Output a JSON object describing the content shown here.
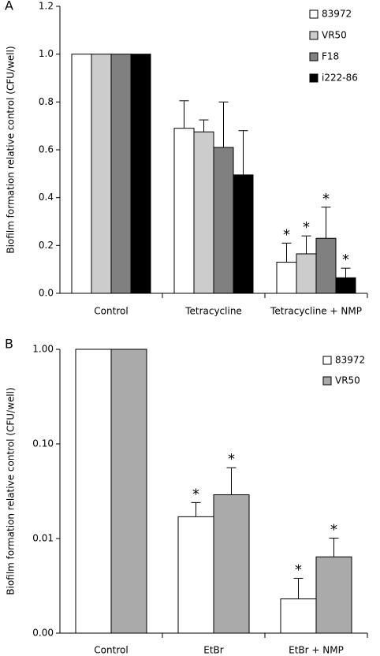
{
  "chart_data": [
    {
      "type": "bar",
      "panel_label": "A",
      "ylabel": "Biofilm formation relative control (CFU/well)",
      "categories": [
        "Control",
        "Tetracycline",
        "Tetracycline + NMP"
      ],
      "series": [
        {
          "name": "83972",
          "color": "#ffffff",
          "values": [
            1,
            0.69,
            0.13
          ],
          "errors": [
            null,
            0.115,
            0.08
          ],
          "markers": [
            null,
            null,
            "*"
          ]
        },
        {
          "name": "VR50",
          "color": "#cccccc",
          "values": [
            1,
            0.675,
            0.165
          ],
          "errors": [
            null,
            0.05,
            0.075
          ],
          "markers": [
            null,
            null,
            "*"
          ]
        },
        {
          "name": "F18",
          "color": "#808080",
          "values": [
            1,
            0.61,
            0.23
          ],
          "errors": [
            null,
            0.19,
            0.13
          ],
          "markers": [
            null,
            null,
            "*"
          ]
        },
        {
          "name": "i222-86",
          "color": "#000000",
          "values": [
            1,
            0.495,
            0.065
          ],
          "errors": [
            null,
            0.185,
            0.04
          ],
          "markers": [
            null,
            null,
            "*"
          ]
        }
      ],
      "ylim": [
        0,
        1.2
      ],
      "yticks": [
        {
          "value": 0,
          "label": "0.0"
        },
        0.2,
        0.4,
        0.6,
        0.8,
        {
          "value": 1,
          "label": "1.0"
        },
        1.2
      ],
      "legend": "upper right"
    },
    {
      "type": "bar",
      "panel_label": "B",
      "ylabel": "Biofilm formation relative control (CFU/well)",
      "categories": [
        "Control",
        "EtBr",
        "EtBr + NMP"
      ],
      "series": [
        {
          "name": "83972",
          "color": "#ffffff",
          "values": [
            1,
            0.017,
            0.0023
          ],
          "errors": [
            null,
            0.007,
            0.0015
          ],
          "markers": [
            null,
            "*",
            "*"
          ]
        },
        {
          "name": "VR50",
          "color": "#aaaaaa",
          "values": [
            1,
            0.029,
            0.0064
          ],
          "errors": [
            null,
            0.027,
            0.0037
          ],
          "markers": [
            null,
            "*",
            "*"
          ]
        }
      ],
      "ylim": [
        0.001,
        1
      ],
      "log_scale": true,
      "yticks": [
        {
          "value": 0.001,
          "label": "0.00"
        },
        {
          "value": 0.01,
          "label": "0.01"
        },
        {
          "value": 0.1,
          "label": "0.10"
        },
        {
          "value": 1,
          "label": "1.00"
        }
      ],
      "legend": "upper right"
    }
  ]
}
